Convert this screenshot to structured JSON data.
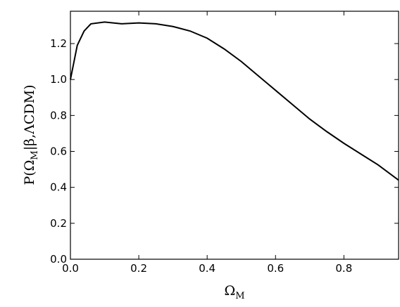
{
  "chart_data": {
    "type": "line",
    "xlabel": [
      "Ω",
      "M"
    ],
    "ylabel": [
      "P(Ω",
      "M",
      "|β,ΛCDM)"
    ],
    "x": [
      0.0,
      0.02,
      0.04,
      0.06,
      0.1,
      0.15,
      0.2,
      0.25,
      0.3,
      0.35,
      0.4,
      0.45,
      0.5,
      0.55,
      0.6,
      0.65,
      0.7,
      0.75,
      0.8,
      0.85,
      0.9,
      0.96
    ],
    "series": [
      {
        "color": "#000000",
        "values": [
          1.0,
          1.19,
          1.27,
          1.31,
          1.32,
          1.31,
          1.315,
          1.31,
          1.295,
          1.27,
          1.23,
          1.17,
          1.1,
          1.02,
          0.94,
          0.86,
          0.78,
          0.71,
          0.645,
          0.585,
          0.525,
          0.44
        ]
      }
    ],
    "xlim": [
      0,
      0.96
    ],
    "ylim": [
      0,
      1.38
    ],
    "xticks": [
      {
        "value": 0,
        "label": "0.0"
      },
      0.2,
      0.4,
      0.6,
      0.8
    ],
    "yticks": [
      {
        "value": 0,
        "label": "0.0"
      },
      0.2,
      0.4,
      0.6,
      0.8,
      {
        "value": 1,
        "label": "1.0"
      },
      1.2
    ],
    "grid": false
  }
}
